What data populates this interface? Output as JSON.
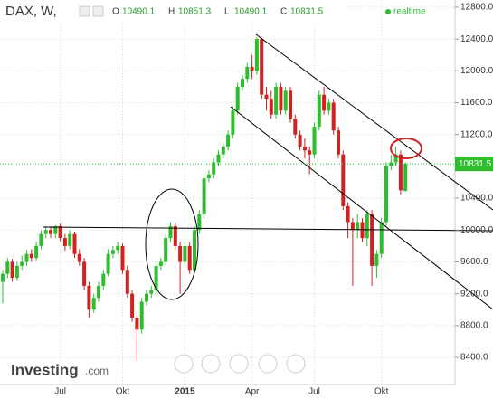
{
  "chart_data": {
    "type": "candlestick",
    "title": "DAX, W,",
    "ohlc_labels": [
      "O",
      "H",
      "L",
      "C"
    ],
    "status": "realtime",
    "logo_main": "Investing",
    "logo_suffix": ".com",
    "up_color": "#2dbd2d",
    "down_color": "#d42020",
    "grid": true,
    "ylim": [
      8060,
      12890
    ],
    "yticks": [
      {
        "value": 8400,
        "label": "8400.0"
      },
      {
        "value": 8800,
        "label": "8800.0"
      },
      {
        "value": 9200,
        "label": "9200.0"
      },
      {
        "value": 9600,
        "label": "9600.0"
      },
      {
        "value": 10000,
        "label": "10000.0"
      },
      {
        "value": 10400,
        "label": "10400.0"
      },
      {
        "value": 10800,
        "label": "10800.0"
      },
      {
        "value": 11200,
        "label": "11200.0"
      },
      {
        "value": 11600,
        "label": "11600.0"
      },
      {
        "value": 12000,
        "label": "12000.0"
      },
      {
        "value": 12400,
        "label": "12400.0"
      },
      {
        "value": 12800,
        "label": "12800.0"
      }
    ],
    "categories": [
      null,
      null,
      null,
      null,
      null,
      null,
      null,
      null,
      null,
      null,
      null,
      null,
      "Jul",
      null,
      null,
      null,
      null,
      null,
      null,
      null,
      null,
      null,
      null,
      null,
      null,
      "Okt",
      null,
      null,
      null,
      null,
      null,
      null,
      null,
      null,
      null,
      null,
      null,
      null,
      "2015",
      null,
      null,
      null,
      null,
      null,
      null,
      null,
      null,
      null,
      null,
      null,
      null,
      null,
      "Apr",
      null,
      null,
      null,
      null,
      null,
      null,
      null,
      null,
      null,
      null,
      null,
      null,
      "Jul",
      null,
      null,
      null,
      null,
      null,
      null,
      null,
      null,
      null,
      null,
      null,
      null,
      null,
      "Okt",
      null,
      null,
      null,
      null,
      null
    ],
    "open": [
      9350,
      9450,
      9600,
      9400,
      9550,
      9600,
      9700,
      9650,
      9800,
      9950,
      10000,
      9950,
      10050,
      9900,
      9800,
      9950,
      9700,
      9600,
      9300,
      9000,
      9150,
      9300,
      9450,
      9700,
      9750,
      9800,
      9500,
      9200,
      8900,
      8750,
      9100,
      9200,
      9250,
      9550,
      9600,
      9900,
      10050,
      9800,
      9600,
      9800,
      9500,
      10000,
      10200,
      10650,
      10700,
      10850,
      10950,
      11050,
      11200,
      11500,
      11800,
      11900,
      12050,
      12000,
      12400,
      11700,
      11650,
      11450,
      11800,
      11500,
      11750,
      11400,
      11200,
      11050,
      11000,
      10950,
      11300,
      11700,
      11500,
      11600,
      11250,
      10950,
      10300,
      10100,
      10000,
      10100,
      9900,
      10200,
      9550,
      9700,
      10100,
      10800,
      10850,
      10950,
      10490.1
    ],
    "high": [
      9500,
      9650,
      9640,
      9600,
      9680,
      9750,
      9760,
      9850,
      10000,
      10050,
      10050,
      10060,
      10080,
      9950,
      10000,
      9980,
      9760,
      9650,
      9350,
      9200,
      9350,
      9500,
      9760,
      9800,
      9850,
      9830,
      9550,
      9250,
      8950,
      9150,
      9250,
      9300,
      9600,
      9650,
      9950,
      10100,
      10100,
      9850,
      9850,
      9850,
      10050,
      10250,
      10700,
      10750,
      10900,
      11000,
      11100,
      11250,
      11550,
      11850,
      11950,
      12100,
      12200,
      12420,
      12420,
      11800,
      11750,
      11850,
      11850,
      11800,
      11800,
      11450,
      11250,
      11150,
      11050,
      11350,
      11750,
      11800,
      11650,
      11650,
      11300,
      11000,
      10350,
      10150,
      10200,
      10150,
      10250,
      10250,
      9750,
      10150,
      10850,
      10950,
      11050,
      11000,
      10851.3
    ],
    "low": [
      9080,
      9400,
      9350,
      9360,
      9500,
      9550,
      9600,
      9620,
      9760,
      9900,
      9900,
      9900,
      9860,
      9740,
      9760,
      9650,
      9550,
      9250,
      8900,
      8960,
      9100,
      9250,
      9420,
      9650,
      9700,
      9450,
      9150,
      8850,
      8350,
      8700,
      9050,
      9150,
      9200,
      9500,
      9560,
      9850,
      9750,
      9200,
      9550,
      9450,
      9480,
      9950,
      10150,
      10600,
      10650,
      10800,
      10900,
      11000,
      11150,
      11450,
      11750,
      11850,
      11900,
      11950,
      11650,
      11500,
      11400,
      11400,
      11450,
      11450,
      11350,
      11150,
      11000,
      10900,
      10700,
      10900,
      11250,
      11450,
      11450,
      11200,
      10900,
      10250,
      9900,
      9300,
      9900,
      9850,
      9800,
      9300,
      9400,
      9650,
      10050,
      10750,
      10800,
      10450,
      10490.1
    ],
    "close": [
      9450,
      9600,
      9400,
      9550,
      9600,
      9700,
      9650,
      9800,
      9950,
      10000,
      9950,
      10050,
      9900,
      9800,
      9950,
      9700,
      9600,
      9300,
      9000,
      9150,
      9300,
      9450,
      9700,
      9750,
      9800,
      9500,
      9200,
      8900,
      8750,
      9100,
      9200,
      9250,
      9550,
      9600,
      9900,
      10050,
      9800,
      9600,
      9800,
      9500,
      10000,
      10200,
      10650,
      10700,
      10850,
      10950,
      11050,
      11200,
      11500,
      11800,
      11900,
      12050,
      12000,
      12400,
      11700,
      11650,
      11450,
      11800,
      11500,
      11750,
      11400,
      11200,
      11050,
      11000,
      10950,
      11300,
      11700,
      11500,
      11600,
      11250,
      10950,
      10300,
      10100,
      10000,
      10100,
      9900,
      10200,
      9550,
      9700,
      10100,
      10800,
      10850,
      10950,
      10500,
      10831.5
    ]
  }
}
